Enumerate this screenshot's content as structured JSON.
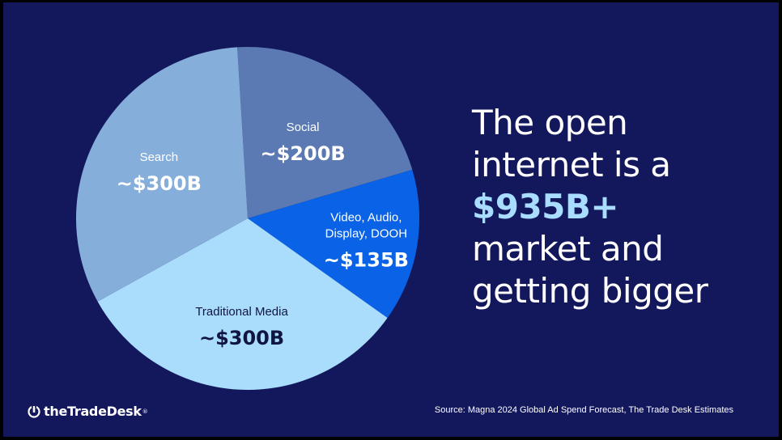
{
  "chart_data": {
    "type": "pie",
    "title": "",
    "slices": [
      {
        "label": "Social",
        "value_label": "~$200B",
        "value": 200,
        "color": "#5b79b3",
        "label_color": "#ffffff"
      },
      {
        "label": "Video, Audio, Display, DOOH",
        "label_lines": [
          "Video, Audio,",
          "Display, DOOH"
        ],
        "value_label": "~$135B",
        "value": 135,
        "color": "#0a63e6",
        "label_color": "#ffffff"
      },
      {
        "label": "Traditional Media",
        "value_label": "~$300B",
        "value": 300,
        "color": "#aadcfc",
        "label_color": "#10163f"
      },
      {
        "label": "Search",
        "value_label": "~$300B",
        "value": 300,
        "color": "#86aedb",
        "label_color": "#ffffff"
      }
    ]
  },
  "headline": {
    "line1": "The open",
    "line2": "internet is a",
    "highlight": "$935B+",
    "line4": "market and",
    "line5": "getting bigger"
  },
  "logo": {
    "text": "theTradeDesk",
    "trademark": "®"
  },
  "source": "Source: Magna 2024 Global Ad Spend Forecast, The Trade Desk Estimates",
  "colors": {
    "background": "#13175c",
    "highlight": "#a9ddff"
  }
}
